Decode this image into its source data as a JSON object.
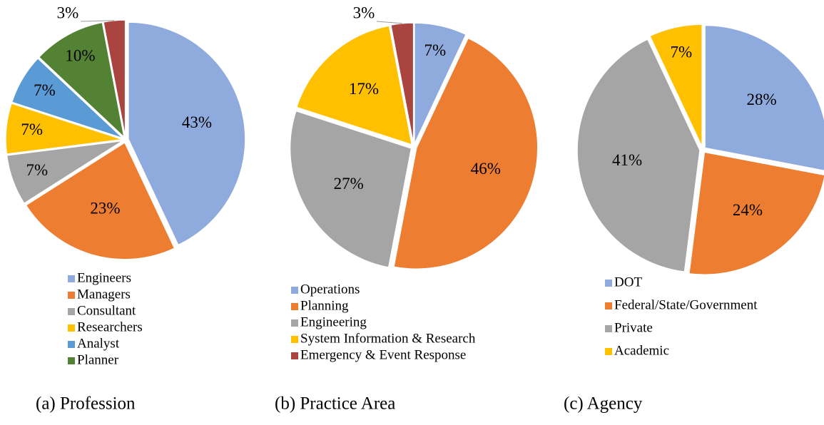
{
  "chart_data": [
    {
      "type": "pie",
      "title": "(a) Profession",
      "categories": [
        "Engineers",
        "Managers",
        "Consultant",
        "Researchers",
        "Analyst",
        "Planner",
        null
      ],
      "values": [
        43,
        23,
        7,
        7,
        7,
        10,
        3
      ],
      "value_labels": [
        "43%",
        "23%",
        "7%",
        "7%",
        "7%",
        "10%",
        "3%"
      ],
      "colors": [
        "#8faadc",
        "#ed7d31",
        "#a5a5a5",
        "#ffc000",
        "#5b9bd5",
        "#548235",
        "#a9443f"
      ]
    },
    {
      "type": "pie",
      "title": "(b) Practice Area",
      "categories": [
        "Operations",
        "Planning",
        "Engineering",
        "System Information & Research",
        "Emergency & Event Response"
      ],
      "values": [
        7,
        46,
        27,
        17,
        3
      ],
      "value_labels": [
        "7%",
        "46%",
        "27%",
        "17%",
        "3%"
      ],
      "colors": [
        "#8faadc",
        "#ed7d31",
        "#a5a5a5",
        "#ffc000",
        "#a9443f"
      ]
    },
    {
      "type": "pie",
      "title": "(c) Agency",
      "categories": [
        "DOT",
        "Federal/State/Government",
        "Private",
        "Academic"
      ],
      "values": [
        28,
        24,
        41,
        7
      ],
      "value_labels": [
        "28%",
        "24%",
        "41%",
        "7%"
      ],
      "colors": [
        "#8faadc",
        "#ed7d31",
        "#a5a5a5",
        "#ffc000"
      ]
    }
  ]
}
